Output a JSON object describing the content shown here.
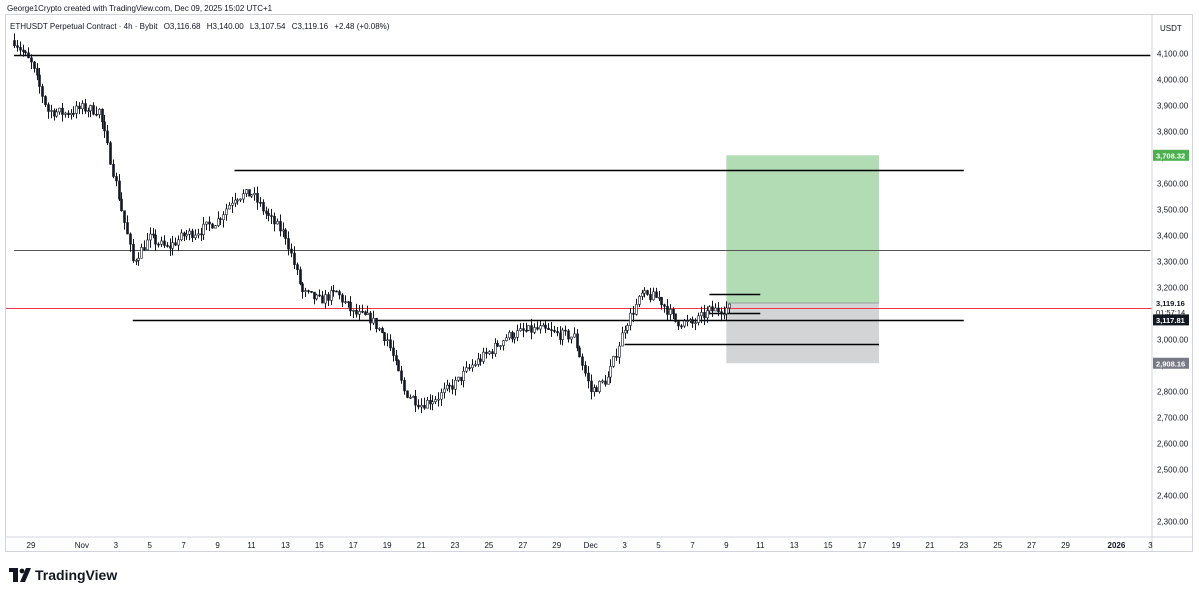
{
  "header": {
    "author_line": "George1Crypto created with TradingView.com, Dec 09, 2025 15:02 UTC+1"
  },
  "legend": {
    "symbol": "ETHUSDT Perpetual Contract · 4h · Bybit",
    "open": "O3,116.68",
    "high": "H3,140.00",
    "low": "L3,107.54",
    "close": "C3,119.16",
    "change": "+2.48 (+0.08%)"
  },
  "price_axis": {
    "currency": "USDT",
    "ticks": [
      "4,100.00",
      "4,000.00",
      "3,900.00",
      "3,800.00",
      "3,700.00",
      "3,600.00",
      "3,500.00",
      "3,400.00",
      "3,300.00",
      "3,200.00",
      "3,000.00",
      "2,900.00",
      "2,800.00",
      "2,700.00",
      "2,600.00",
      "2,500.00",
      "2,400.00",
      "2,300.00"
    ]
  },
  "time_axis": {
    "labels": [
      "29",
      "Nov",
      "3",
      "5",
      "7",
      "9",
      "11",
      "13",
      "15",
      "17",
      "19",
      "21",
      "23",
      "25",
      "27",
      "29",
      "Dec",
      "3",
      "5",
      "7",
      "9",
      "11",
      "13",
      "15",
      "17",
      "19",
      "21",
      "23",
      "25",
      "27",
      "29",
      "2026",
      "3"
    ]
  },
  "badges": {
    "target": "3,708.32",
    "last_price": "3,119.16",
    "countdown": "01:57:14",
    "level": "3,117.81",
    "stop": "2,908.16"
  },
  "colors": {
    "candle": "#131722",
    "target_zone": "#a5d6a7",
    "stop_zone": "#c8c9cc",
    "last_price_line": "#f23645",
    "target_badge": "#4caf50",
    "stop_badge": "#787b86",
    "level_line": "#000000"
  },
  "footer": {
    "brand": "TradingView"
  },
  "chart_data": {
    "type": "candlestick",
    "title": "ETHUSDT Perpetual Contract · 4h · Bybit",
    "ylabel": "USDT",
    "ylim": [
      2230,
      4230
    ],
    "x_range": [
      "2025-10-28",
      "2026-01-03"
    ],
    "grid": false,
    "closes_by_date": [
      [
        "2025-10-28",
        4150
      ],
      [
        "2025-10-29",
        4060
      ],
      [
        "2025-10-30",
        3880
      ],
      [
        "2025-10-31",
        3870
      ],
      [
        "2025-11-01",
        3890
      ],
      [
        "2025-11-02",
        3880
      ],
      [
        "2025-11-03",
        3600
      ],
      [
        "2025-11-04",
        3300
      ],
      [
        "2025-11-05",
        3390
      ],
      [
        "2025-11-06",
        3350
      ],
      [
        "2025-11-07",
        3400
      ],
      [
        "2025-11-08",
        3420
      ],
      [
        "2025-11-09",
        3460
      ],
      [
        "2025-11-10",
        3550
      ],
      [
        "2025-11-11",
        3560
      ],
      [
        "2025-11-12",
        3470
      ],
      [
        "2025-11-13",
        3400
      ],
      [
        "2025-11-14",
        3180
      ],
      [
        "2025-11-15",
        3150
      ],
      [
        "2025-11-16",
        3180
      ],
      [
        "2025-11-17",
        3100
      ],
      [
        "2025-11-18",
        3080
      ],
      [
        "2025-11-19",
        3000
      ],
      [
        "2025-11-20",
        2800
      ],
      [
        "2025-11-21",
        2750
      ],
      [
        "2025-11-22",
        2780
      ],
      [
        "2025-11-23",
        2830
      ],
      [
        "2025-11-24",
        2900
      ],
      [
        "2025-11-25",
        2950
      ],
      [
        "2025-11-26",
        3010
      ],
      [
        "2025-11-27",
        3030
      ],
      [
        "2025-11-28",
        3040
      ],
      [
        "2025-11-29",
        3020
      ],
      [
        "2025-11-30",
        3010
      ],
      [
        "2025-12-01",
        2800
      ],
      [
        "2025-12-02",
        2850
      ],
      [
        "2025-12-03",
        3050
      ],
      [
        "2025-12-04",
        3170
      ],
      [
        "2025-12-05",
        3160
      ],
      [
        "2025-12-06",
        3070
      ],
      [
        "2025-12-07",
        3060
      ],
      [
        "2025-12-08",
        3110
      ],
      [
        "2025-12-09",
        3119.16
      ]
    ],
    "levels": [
      {
        "price": 4095,
        "from": "2025-10-28",
        "to": "2026-01-03"
      },
      {
        "price": 3650,
        "from": "2025-11-10",
        "to": "2025-12-23"
      },
      {
        "price": 3345,
        "from": "2025-10-28",
        "to": "2026-01-03"
      },
      {
        "price": 3176,
        "from": "2025-12-08",
        "to": "2025-12-11"
      },
      {
        "price": 3075,
        "from": "2025-11-04",
        "to": "2025-12-23"
      },
      {
        "price": 3100,
        "from": "2025-12-08",
        "to": "2025-12-11"
      },
      {
        "price": 2983,
        "from": "2025-12-03",
        "to": "2025-12-18"
      }
    ],
    "position": {
      "type": "long",
      "entry": 3140,
      "target": 3708.32,
      "stop": 2908.16,
      "from": "2025-12-09",
      "to": "2025-12-18"
    },
    "last_price": 3119.16
  }
}
